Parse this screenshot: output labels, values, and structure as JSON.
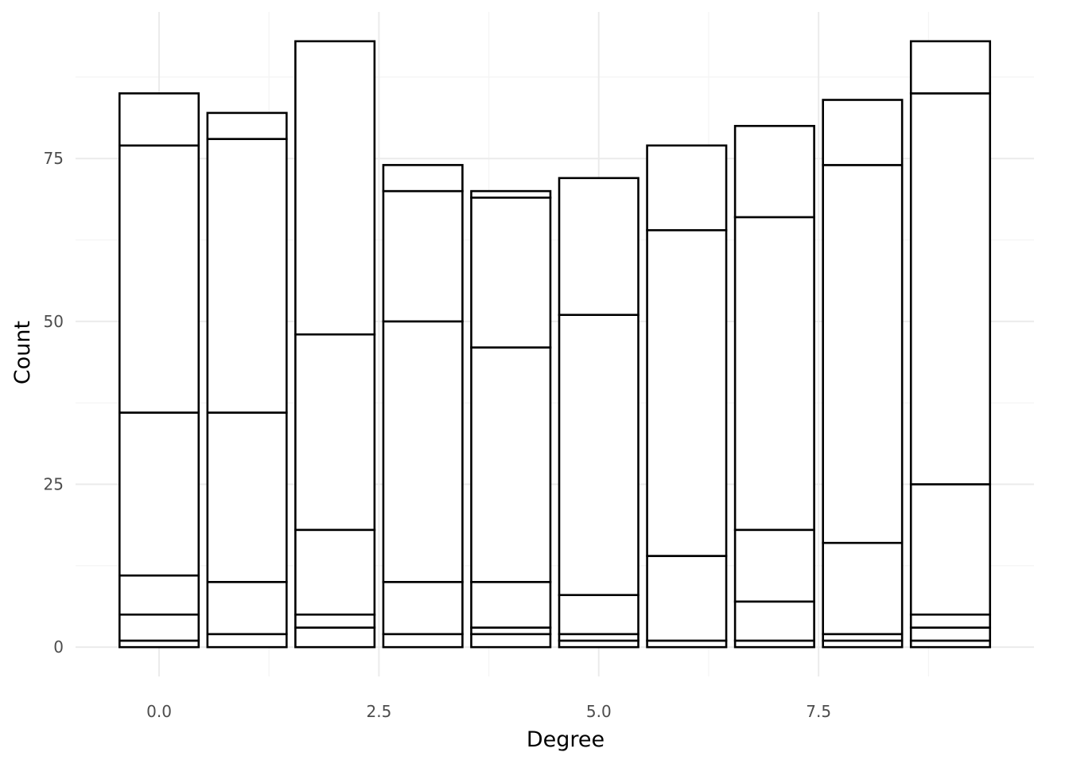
{
  "chart_data": {
    "type": "bar",
    "stacked": true,
    "xlabel": "Degree",
    "ylabel": "Count",
    "xlim": [
      -0.95,
      9.95
    ],
    "ylim": [
      -4.5,
      97.5
    ],
    "x_ticks": [
      0.0,
      2.5,
      5.0,
      7.5
    ],
    "x_tick_labels": [
      "0.0",
      "2.5",
      "5.0",
      "7.5"
    ],
    "y_ticks": [
      0,
      25,
      50,
      75
    ],
    "y_tick_labels": [
      "0",
      "25",
      "50",
      "75"
    ],
    "grid": true,
    "bar_fill": "#ffffff",
    "bar_stroke": "#000000",
    "categories": [
      0,
      1,
      2,
      3,
      4,
      5,
      6,
      7,
      8,
      9
    ],
    "stack_boundaries": [
      [
        0,
        1,
        5,
        11,
        36,
        77,
        85
      ],
      [
        0,
        2,
        10,
        36,
        78,
        82
      ],
      [
        0,
        3,
        5,
        18,
        48,
        93
      ],
      [
        0,
        2,
        10,
        50,
        70,
        74
      ],
      [
        0,
        2,
        3,
        10,
        46,
        69,
        70
      ],
      [
        0,
        1,
        2,
        8,
        51,
        72
      ],
      [
        0,
        1,
        14,
        64,
        77
      ],
      [
        0,
        1,
        7,
        18,
        66,
        80
      ],
      [
        0,
        1,
        2,
        16,
        74,
        84
      ],
      [
        0,
        1,
        3,
        5,
        25,
        85,
        93
      ]
    ]
  }
}
